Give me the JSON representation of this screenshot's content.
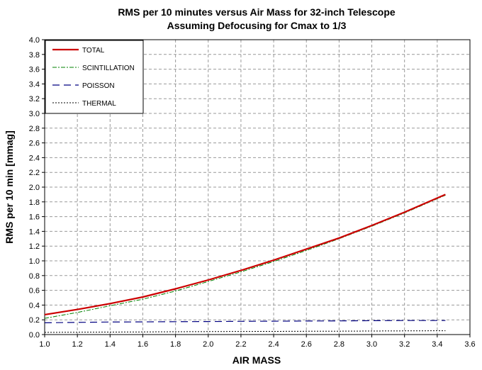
{
  "chart_data": {
    "type": "line",
    "title": "RMS per 10 minutes versus Air Mass for 32-inch Telescope",
    "subtitle": "Assuming Defocusing for Cmax to 1/3",
    "xlabel": "AIR MASS",
    "ylabel": "RMS per 10 min [mmag]",
    "xlim": [
      1.0,
      3.6
    ],
    "ylim": [
      0.0,
      4.0
    ],
    "x_ticks": [
      "1.0",
      "1.2",
      "1.4",
      "1.6",
      "1.8",
      "2.0",
      "2.2",
      "2.4",
      "2.6",
      "2.8",
      "3.0",
      "3.2",
      "3.4",
      "3.6"
    ],
    "y_ticks": [
      "0.0",
      "0.2",
      "0.4",
      "0.6",
      "0.8",
      "1.0",
      "1.2",
      "1.4",
      "1.6",
      "1.8",
      "2.0",
      "2.2",
      "2.4",
      "2.6",
      "2.8",
      "3.0",
      "3.2",
      "3.4",
      "3.6",
      "3.8",
      "4.0"
    ],
    "grid": true,
    "legend_position": "top-left",
    "x": [
      1.0,
      1.2,
      1.4,
      1.6,
      1.8,
      2.0,
      2.2,
      2.4,
      2.6,
      2.8,
      3.0,
      3.2,
      3.45
    ],
    "series": [
      {
        "name": "TOTAL",
        "color": "#cc0000",
        "style": "solid",
        "values": [
          0.27,
          0.34,
          0.42,
          0.51,
          0.62,
          0.74,
          0.87,
          1.01,
          1.16,
          1.31,
          1.48,
          1.66,
          1.9
        ]
      },
      {
        "name": "SCINTILLATION",
        "color": "#008000",
        "style": "dashdot",
        "values": [
          0.22,
          0.3,
          0.39,
          0.48,
          0.59,
          0.72,
          0.85,
          0.99,
          1.14,
          1.3,
          1.47,
          1.65,
          1.89
        ]
      },
      {
        "name": "POISSON",
        "color": "#000080",
        "style": "dashed",
        "values": [
          0.16,
          0.165,
          0.17,
          0.172,
          0.175,
          0.177,
          0.18,
          0.182,
          0.184,
          0.186,
          0.188,
          0.19,
          0.19
        ]
      },
      {
        "name": "THERMAL",
        "color": "#000000",
        "style": "dotted",
        "values": [
          0.03,
          0.032,
          0.034,
          0.036,
          0.038,
          0.04,
          0.042,
          0.043,
          0.045,
          0.046,
          0.048,
          0.05,
          0.052
        ]
      }
    ]
  }
}
